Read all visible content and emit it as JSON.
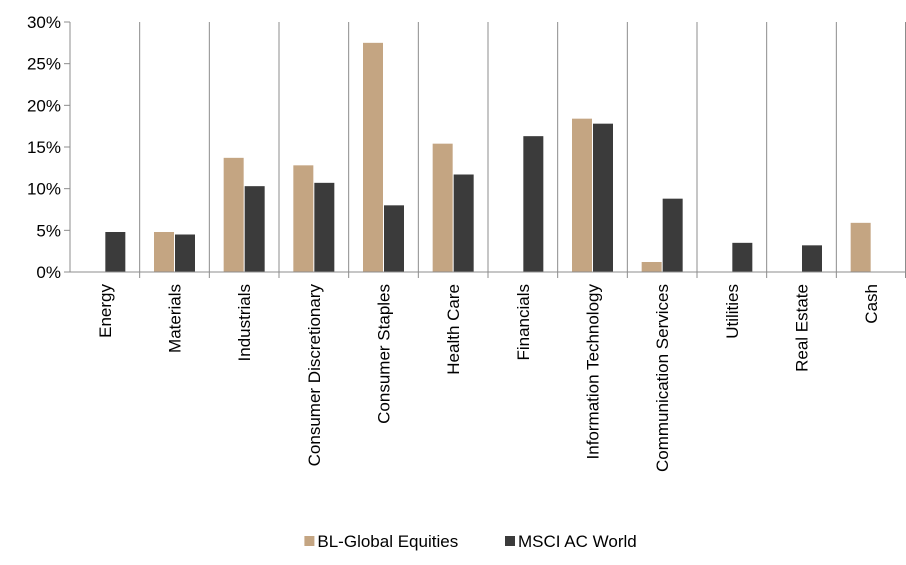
{
  "chart_data": {
    "type": "bar",
    "categories": [
      "Energy",
      "Materials",
      "Industrials",
      "Consumer Discretionary",
      "Consumer Staples",
      "Health Care",
      "Financials",
      "Information Technology",
      "Communication Services",
      "Utilities",
      "Real Estate",
      "Cash"
    ],
    "series": [
      {
        "name": "BL-Global Equities",
        "color": "#c4a582",
        "values": [
          0,
          4.8,
          13.7,
          12.8,
          27.5,
          15.4,
          0,
          18.4,
          1.2,
          0,
          0,
          5.9
        ]
      },
      {
        "name": "MSCI AC World",
        "color": "#3b3b3b",
        "values": [
          4.8,
          4.5,
          10.3,
          10.7,
          8.0,
          11.7,
          16.3,
          17.8,
          8.8,
          3.5,
          3.2,
          0
        ]
      }
    ],
    "ylim": [
      0,
      30
    ],
    "yticks": [
      0,
      5,
      10,
      15,
      20,
      25,
      30
    ],
    "ytick_labels": [
      "0%",
      "5%",
      "10%",
      "15%",
      "20%",
      "25%",
      "30%"
    ],
    "title": "",
    "xlabel": "",
    "ylabel": "",
    "grid": "vertical category separators",
    "legend_position": "bottom-center"
  }
}
